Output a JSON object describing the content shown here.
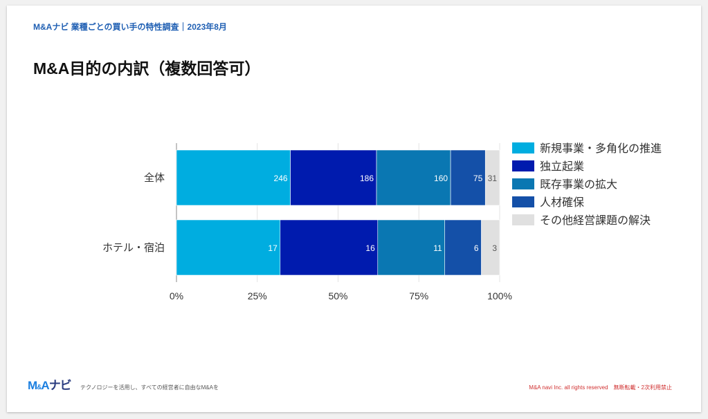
{
  "header": {
    "subtitle": "M&Aナビ 業種ごとの買い手の特性調査｜2023年8月",
    "title": "M&A目的の内訳（複数回答可）"
  },
  "chart_data": {
    "type": "bar",
    "orientation": "horizontal",
    "stacked": "percent",
    "categories": [
      "全体",
      "ホテル・宿泊"
    ],
    "series": [
      {
        "name": "新規事業・多角化の推進",
        "values": [
          246,
          17
        ],
        "color": "#00ADE0"
      },
      {
        "name": "独立起業",
        "values": [
          186,
          16
        ],
        "color": "#001BAE"
      },
      {
        "name": "既存事業の拡大",
        "values": [
          160,
          11
        ],
        "color": "#0A77B2"
      },
      {
        "name": "人材確保",
        "values": [
          75,
          6
        ],
        "color": "#1450A8"
      },
      {
        "name": "その他経営課題の解決",
        "values": [
          31,
          3
        ],
        "color": "#E0E0E0"
      }
    ],
    "xticks": [
      "0%",
      "25%",
      "50%",
      "75%",
      "100%"
    ],
    "xlim": [
      0,
      100
    ],
    "grid": true,
    "legend": "right"
  },
  "footer": {
    "logo": {
      "main": "M",
      "amp": "&",
      "a": "A",
      "navi": "ナビ"
    },
    "tagline": "テクノロジーを活用し、すべての経営者に自由なM&Aを",
    "copyright": "M&A navi Inc. all rights reserved　無断転載・2次利用禁止"
  }
}
